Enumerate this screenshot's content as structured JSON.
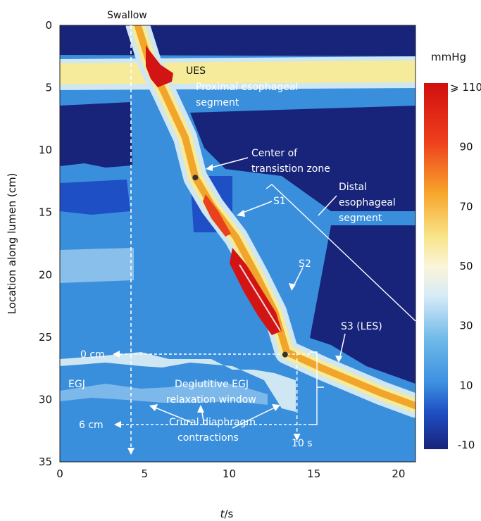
{
  "chart_data": {
    "type": "heatmap",
    "title": "",
    "xlabel_italic": "t",
    "xlabel_rest": "/s",
    "ylabel": "Location along lumen (cm)",
    "xlim": [
      0,
      21
    ],
    "ylim": [
      0,
      35
    ],
    "x_ticks": [
      0,
      5,
      10,
      15,
      20
    ],
    "y_ticks": [
      0,
      5,
      10,
      15,
      20,
      25,
      30,
      35
    ],
    "y_inverted": true,
    "colorbar": {
      "unit": "mmHg",
      "ticks": [
        "⩾ 110",
        "90",
        "70",
        "50",
        "30",
        "10",
        "-10"
      ],
      "min": -10,
      "max": 110,
      "colors": [
        "#15237a",
        "#1f4fc4",
        "#4aa3e6",
        "#cfe6f3",
        "#f5eb9a",
        "#f6b835",
        "#e8411c",
        "#d31414"
      ]
    },
    "contraction_path": [
      {
        "t": 4.6,
        "cm": 0.0
      },
      {
        "t": 5.3,
        "cm": 3.0
      },
      {
        "t": 6.2,
        "cm": 5.5
      },
      {
        "t": 7.4,
        "cm": 9.0
      },
      {
        "t": 8.0,
        "cm": 12.2
      },
      {
        "t": 9.0,
        "cm": 14.5
      },
      {
        "t": 10.4,
        "cm": 17.0
      },
      {
        "t": 11.6,
        "cm": 20.0
      },
      {
        "t": 12.7,
        "cm": 23.0
      },
      {
        "t": 13.4,
        "cm": 26.2
      },
      {
        "t": 15.5,
        "cm": 27.5
      },
      {
        "t": 19.0,
        "cm": 29.5
      },
      {
        "t": 21.0,
        "cm": 30.5
      }
    ],
    "markers": [
      {
        "t": 8.0,
        "cm": 12.2
      },
      {
        "t": 13.3,
        "cm": 26.4
      }
    ],
    "swallow_line": {
      "t": 4.2
    },
    "window_end_line": {
      "t": 14.0
    },
    "annotations": {
      "swallow": "Swallow",
      "ues": "UES",
      "proximal": [
        "Proximal esophageal",
        "segment"
      ],
      "transition": [
        "Center of",
        "transistion zone"
      ],
      "distal": [
        "Distal",
        "esophageal",
        "segment"
      ],
      "s1": "S1",
      "s2": "S2",
      "s3": "S3 (LES)",
      "zero_cm": "0 cm",
      "egj": "EGJ",
      "egj_window": [
        "Deglutitive EGJ",
        "relaxation window"
      ],
      "six_cm": "6 cm",
      "crural": [
        "Crural diaphragm",
        "contractions"
      ],
      "ten_s": "10 s"
    }
  }
}
